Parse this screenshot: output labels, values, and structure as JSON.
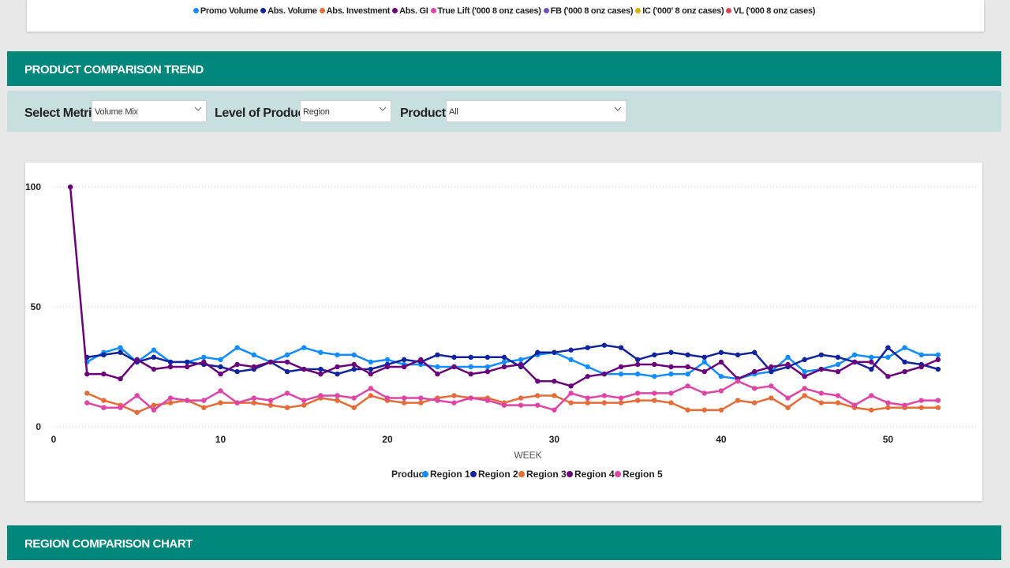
{
  "top_legend": [
    {
      "label": "Promo Volume",
      "color": "#118dff"
    },
    {
      "label": "Abs. Volume",
      "color": "#12239e"
    },
    {
      "label": "Abs. Investment",
      "color": "#e66c37"
    },
    {
      "label": "Abs. GI",
      "color": "#6b007b"
    },
    {
      "label": "True Lift ('000 8 onz cases)",
      "color": "#e044a7"
    },
    {
      "label": "FB ('000 8 onz cases)",
      "color": "#744ec2"
    },
    {
      "label": "IC ('000' 8 onz cases)",
      "color": "#d9b300"
    },
    {
      "label": "VL ('000 8 onz cases)",
      "color": "#d64550"
    }
  ],
  "section_trend": {
    "title": "PRODUCT COMPARISON TREND"
  },
  "filters": {
    "metric_label": "Select Metric:",
    "metric_value": "Volume Mix",
    "level_label": "Level of Product:",
    "level_value": "Region",
    "product_label": "Product:",
    "product_value": "All"
  },
  "section_region": {
    "title": "REGION COMPARISON CHART"
  },
  "chart_data": {
    "type": "line",
    "xlabel": "WEEK",
    "ylabel": "",
    "xlim": [
      0,
      54
    ],
    "ylim": [
      0,
      100
    ],
    "x_ticks": [
      0,
      10,
      20,
      30,
      40,
      50
    ],
    "y_ticks": [
      0,
      50,
      100
    ],
    "legend_title": "Product",
    "legend_position": "bottom",
    "grid": "horizontal-dotted",
    "x": [
      1,
      2,
      3,
      4,
      5,
      6,
      7,
      8,
      9,
      10,
      11,
      12,
      13,
      14,
      15,
      16,
      17,
      18,
      19,
      20,
      21,
      22,
      23,
      24,
      25,
      26,
      27,
      28,
      29,
      30,
      31,
      32,
      33,
      34,
      35,
      36,
      37,
      38,
      39,
      40,
      41,
      42,
      43,
      44,
      45,
      46,
      47,
      48,
      49,
      50,
      51,
      52,
      53
    ],
    "series": [
      {
        "name": "Region 1",
        "color": "#118dff",
        "values": [
          null,
          27,
          31,
          33,
          27,
          32,
          27,
          27,
          29,
          28,
          33,
          30,
          27,
          30,
          33,
          31,
          30,
          30,
          27,
          28,
          26,
          26,
          25,
          25,
          25,
          25,
          27,
          28,
          30,
          31,
          28,
          25,
          22,
          22,
          22,
          21,
          22,
          22,
          27,
          21,
          20,
          22,
          23,
          29,
          23,
          24,
          26,
          30,
          29,
          29,
          33,
          30,
          30
        ]
      },
      {
        "name": "Region 2",
        "color": "#12239e",
        "values": [
          null,
          29,
          30,
          31,
          27,
          29,
          27,
          27,
          26,
          25,
          23,
          24,
          27,
          23,
          24,
          24,
          22,
          24,
          24,
          26,
          28,
          27,
          30,
          29,
          29,
          29,
          29,
          25,
          31,
          31,
          32,
          33,
          34,
          33,
          28,
          30,
          31,
          30,
          29,
          31,
          30,
          31,
          23,
          25,
          28,
          30,
          29,
          27,
          24,
          33,
          27,
          26,
          24
        ]
      },
      {
        "name": "Region 3",
        "color": "#e66c37",
        "values": [
          null,
          14,
          11,
          9,
          6,
          9,
          10,
          11,
          8,
          10,
          10,
          10,
          9,
          8,
          9,
          12,
          11,
          8,
          13,
          11,
          10,
          10,
          12,
          13,
          12,
          12,
          10,
          12,
          13,
          13,
          10,
          10,
          10,
          10,
          11,
          11,
          10,
          7,
          7,
          7,
          11,
          10,
          12,
          8,
          13,
          10,
          10,
          8,
          7,
          8,
          8,
          8,
          8
        ]
      },
      {
        "name": "Region 4",
        "color": "#6b007b",
        "values": [
          100,
          22,
          22,
          20,
          28,
          24,
          25,
          25,
          27,
          22,
          26,
          25,
          27,
          27,
          24,
          22,
          25,
          26,
          22,
          25,
          25,
          28,
          22,
          25,
          22,
          23,
          25,
          26,
          19,
          19,
          17,
          21,
          22,
          25,
          26,
          26,
          25,
          25,
          23,
          27,
          20,
          23,
          25,
          26,
          21,
          24,
          23,
          27,
          27,
          21,
          23,
          25,
          28
        ]
      },
      {
        "name": "Region 5",
        "color": "#e044a7",
        "values": [
          null,
          10,
          8,
          8,
          13,
          7,
          12,
          11,
          11,
          15,
          10,
          12,
          11,
          14,
          11,
          13,
          13,
          12,
          16,
          12,
          12,
          12,
          11,
          10,
          12,
          11,
          9,
          9,
          9,
          7,
          14,
          12,
          13,
          12,
          14,
          14,
          14,
          17,
          14,
          15,
          19,
          16,
          17,
          12,
          16,
          14,
          13,
          9,
          13,
          10,
          9,
          11,
          11
        ]
      }
    ]
  }
}
